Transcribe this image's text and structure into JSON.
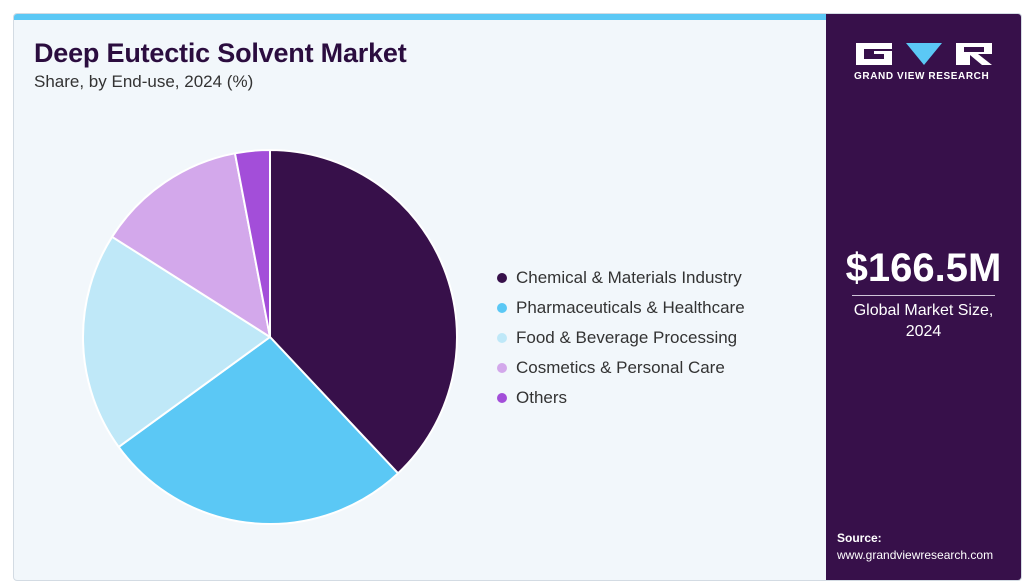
{
  "title": "Deep Eutectic Solvent Market",
  "subtitle": "Share, by End-use, 2024 (%)",
  "colors": {
    "accent_bar": "#5bc8f5",
    "sidebar": "#37104a",
    "background": "#f2f7fb"
  },
  "chart_data": {
    "type": "pie",
    "title": "Deep Eutectic Solvent Market",
    "subtitle": "Share, by End-use, 2024 (%)",
    "legend_position": "right",
    "slices": [
      {
        "label": "Chemical & Materials Industry",
        "value": 38,
        "color": "#37104a"
      },
      {
        "label": "Pharmaceuticals & Healthcare",
        "value": 27,
        "color": "#5bc8f5"
      },
      {
        "label": "Food & Beverage Processing",
        "value": 19,
        "color": "#bfe8f8"
      },
      {
        "label": "Cosmetics & Personal Care",
        "value": 13,
        "color": "#d3a8eb"
      },
      {
        "label": "Others",
        "value": 3,
        "color": "#a34ed9"
      }
    ]
  },
  "sidebar": {
    "logo_text": "GRAND VIEW RESEARCH",
    "market_size": "$166.5M",
    "market_label": "Global Market Size, 2024",
    "source_label": "Source:",
    "source_url": "www.grandviewresearch.com"
  }
}
